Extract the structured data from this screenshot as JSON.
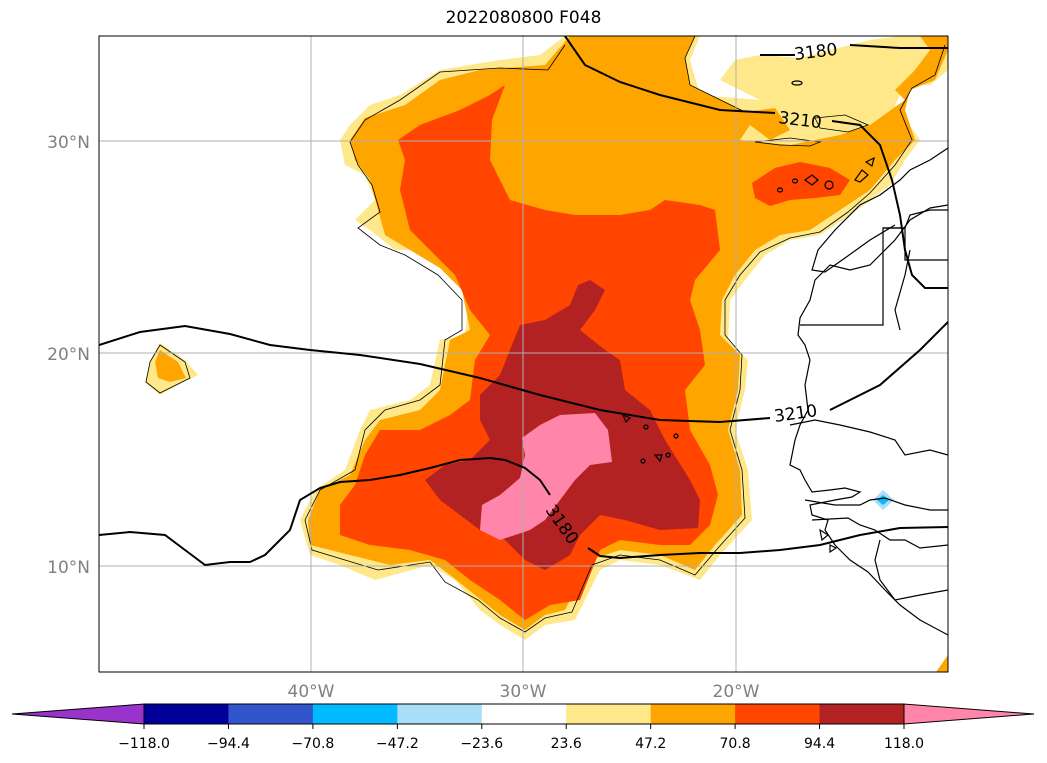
{
  "map": {
    "title": "2022080800 F048",
    "lon_labels": [
      "40°W",
      "30°W",
      "20°W"
    ],
    "lat_labels": [
      "30°N",
      "20°N",
      "10°N"
    ],
    "contour_labels": [
      "3180",
      "3210",
      "3210",
      "3180"
    ],
    "extent": {
      "lon": [
        -50,
        -10
      ],
      "lat": [
        5,
        35
      ]
    }
  },
  "colorbar": {
    "labels": [
      "−118.0",
      "−94.4",
      "−70.8",
      "−47.2",
      "−23.6",
      "23.6",
      "47.2",
      "70.8",
      "94.4",
      "118.0"
    ],
    "levels": [
      -118.0,
      -94.4,
      -70.8,
      -47.2,
      -23.6,
      23.6,
      47.2,
      70.8,
      94.4,
      118.0
    ],
    "colors": {
      "below_min": "#9933cc",
      "bins": [
        "#000099",
        "#3355cc",
        "#00bbff",
        "#aaddf7",
        "#ffffff",
        "#fee88a",
        "#ffa500",
        "#ff4500",
        "#b22222"
      ],
      "above_max": "#ff85aa"
    }
  }
}
